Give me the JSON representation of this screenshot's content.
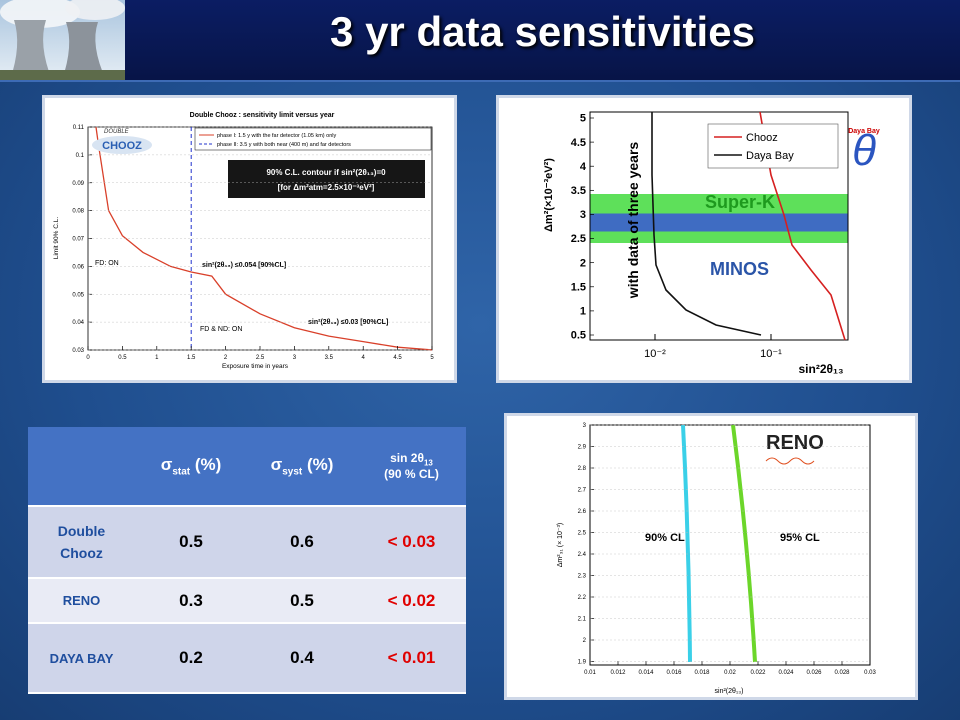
{
  "header": {
    "title": "3 yr data sensitivities"
  },
  "plot_chooz": {
    "title": "Double Chooz : sensitivity limit versus year",
    "logo_top": "DOUBLE",
    "logo_main": "CHOOZ",
    "legend": [
      "phase I: 1.5 y with the far detector (1.05 km) only",
      "phase II: 3.5 y with both near (400 m) and far detectors"
    ],
    "box": [
      "90% C.L. contour if sin²(2θ₁₃)=0",
      "[for Δm²atm=2.5×10⁻³eV²]"
    ],
    "annotations": [
      "FD: ON",
      "sin²(2θ₁₃) ≤0.054 [90%CL]",
      "FD & ND: ON",
      "sin²(2θ₁₃) ≤0.03 [90%CL]"
    ],
    "xlabel": "Exposure time in years",
    "ylabel": "Limit 90% C.L.",
    "xticks": [
      "0",
      "0.5",
      "1",
      "1.5",
      "2",
      "2.5",
      "3",
      "3.5",
      "4",
      "4.5",
      "5"
    ],
    "yticks": [
      "0.11",
      "0.1",
      "0.09",
      "0.08",
      "0.07",
      "0.06",
      "0.05",
      "0.04",
      "0.03"
    ]
  },
  "plot_dayabay": {
    "legend": [
      "Chooz",
      "Daya Bay"
    ],
    "logo": "Daya Bay",
    "bands": [
      "Super-K",
      "MINOS"
    ],
    "note": "with data of three years",
    "xlabel": "sin²2θ₁₃",
    "ylabel": "Δm²(×10⁻³eV²)",
    "xticks": [
      "10⁻²",
      "10⁻¹"
    ],
    "yticks": [
      "5",
      "4.5",
      "4",
      "3.5",
      "3",
      "2.5",
      "2",
      "1.5",
      "1",
      "0.5"
    ]
  },
  "plot_reno": {
    "logo": "RENO",
    "curves": [
      "90% CL",
      "95% CL"
    ],
    "xlabel": "sin²(2θ₁₃)",
    "ylabel": "Δm²₃₁ (× 10⁻³)",
    "xticks": [
      "0.01",
      "0.012",
      "0.014",
      "0.016",
      "0.018",
      "0.02",
      "0.022",
      "0.024",
      "0.026",
      "0.028",
      "0.03"
    ],
    "yticks": [
      "3",
      "2.9",
      "2.8",
      "2.7",
      "2.6",
      "2.5",
      "2.4",
      "2.3",
      "2.2",
      "2.1",
      "2",
      "1.9"
    ]
  },
  "table": {
    "header": [
      {
        "main": "σ",
        "sub": "stat",
        "tail": "(%)"
      },
      {
        "main": "σ",
        "sub": "syst",
        "tail": "(%)"
      },
      {
        "main": "sin 2θ",
        "sub": "13",
        "tail": "(90 % CL)"
      }
    ],
    "rows": [
      [
        "Double Chooz",
        "0.5",
        "0.6",
        "< 0.03"
      ],
      [
        "RENO",
        "0.3",
        "0.5",
        "< 0.02"
      ],
      [
        "DAYA BAY",
        "0.2",
        "0.4",
        "< 0.01"
      ]
    ]
  }
}
